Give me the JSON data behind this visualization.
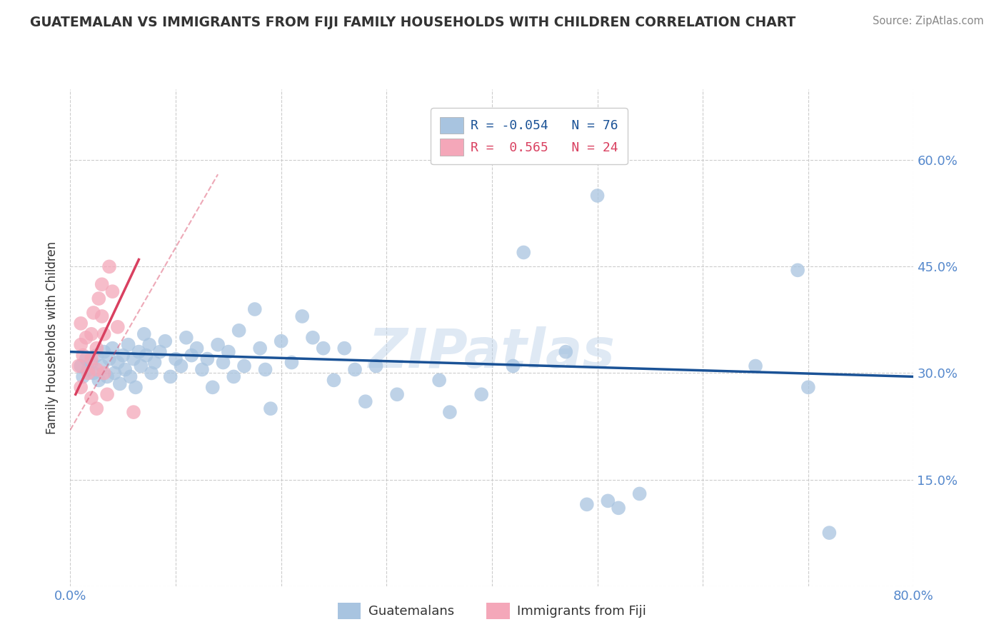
{
  "title": "GUATEMALAN VS IMMIGRANTS FROM FIJI FAMILY HOUSEHOLDS WITH CHILDREN CORRELATION CHART",
  "source": "Source: ZipAtlas.com",
  "ylabel": "Family Households with Children",
  "xlim": [
    0.0,
    0.8
  ],
  "ylim": [
    0.0,
    0.7
  ],
  "xticks": [
    0.0,
    0.1,
    0.2,
    0.3,
    0.4,
    0.5,
    0.6,
    0.7,
    0.8
  ],
  "yticks": [
    0.0,
    0.15,
    0.3,
    0.45,
    0.6
  ],
  "blue_color": "#a8c4e0",
  "pink_color": "#f4a7b9",
  "blue_line_color": "#1a5296",
  "pink_line_color": "#d94060",
  "grid_color": "#cccccc",
  "background_color": "#ffffff",
  "title_color": "#333333",
  "axis_label_color": "#333333",
  "tick_label_color": "#5588cc",
  "source_color": "#888888",
  "blue_scatter": [
    [
      0.01,
      0.31
    ],
    [
      0.012,
      0.295
    ],
    [
      0.015,
      0.32
    ],
    [
      0.017,
      0.305
    ],
    [
      0.02,
      0.315
    ],
    [
      0.022,
      0.3
    ],
    [
      0.025,
      0.325
    ],
    [
      0.027,
      0.29
    ],
    [
      0.03,
      0.31
    ],
    [
      0.032,
      0.33
    ],
    [
      0.035,
      0.295
    ],
    [
      0.037,
      0.32
    ],
    [
      0.04,
      0.335
    ],
    [
      0.042,
      0.3
    ],
    [
      0.045,
      0.315
    ],
    [
      0.047,
      0.285
    ],
    [
      0.05,
      0.325
    ],
    [
      0.052,
      0.305
    ],
    [
      0.055,
      0.34
    ],
    [
      0.057,
      0.295
    ],
    [
      0.06,
      0.32
    ],
    [
      0.062,
      0.28
    ],
    [
      0.065,
      0.33
    ],
    [
      0.067,
      0.31
    ],
    [
      0.07,
      0.355
    ],
    [
      0.072,
      0.325
    ],
    [
      0.075,
      0.34
    ],
    [
      0.077,
      0.3
    ],
    [
      0.08,
      0.315
    ],
    [
      0.085,
      0.33
    ],
    [
      0.09,
      0.345
    ],
    [
      0.095,
      0.295
    ],
    [
      0.1,
      0.32
    ],
    [
      0.105,
      0.31
    ],
    [
      0.11,
      0.35
    ],
    [
      0.115,
      0.325
    ],
    [
      0.12,
      0.335
    ],
    [
      0.125,
      0.305
    ],
    [
      0.13,
      0.32
    ],
    [
      0.135,
      0.28
    ],
    [
      0.14,
      0.34
    ],
    [
      0.145,
      0.315
    ],
    [
      0.15,
      0.33
    ],
    [
      0.155,
      0.295
    ],
    [
      0.16,
      0.36
    ],
    [
      0.165,
      0.31
    ],
    [
      0.175,
      0.39
    ],
    [
      0.18,
      0.335
    ],
    [
      0.185,
      0.305
    ],
    [
      0.19,
      0.25
    ],
    [
      0.2,
      0.345
    ],
    [
      0.21,
      0.315
    ],
    [
      0.22,
      0.38
    ],
    [
      0.23,
      0.35
    ],
    [
      0.24,
      0.335
    ],
    [
      0.25,
      0.29
    ],
    [
      0.26,
      0.335
    ],
    [
      0.27,
      0.305
    ],
    [
      0.28,
      0.26
    ],
    [
      0.29,
      0.31
    ],
    [
      0.31,
      0.27
    ],
    [
      0.35,
      0.29
    ],
    [
      0.36,
      0.245
    ],
    [
      0.39,
      0.27
    ],
    [
      0.42,
      0.31
    ],
    [
      0.43,
      0.47
    ],
    [
      0.47,
      0.33
    ],
    [
      0.49,
      0.115
    ],
    [
      0.5,
      0.55
    ],
    [
      0.51,
      0.12
    ],
    [
      0.52,
      0.11
    ],
    [
      0.54,
      0.13
    ],
    [
      0.65,
      0.31
    ],
    [
      0.69,
      0.445
    ],
    [
      0.7,
      0.28
    ],
    [
      0.72,
      0.075
    ]
  ],
  "pink_scatter": [
    [
      0.008,
      0.31
    ],
    [
      0.01,
      0.34
    ],
    [
      0.01,
      0.37
    ],
    [
      0.01,
      0.28
    ],
    [
      0.012,
      0.325
    ],
    [
      0.015,
      0.35
    ],
    [
      0.017,
      0.3
    ],
    [
      0.02,
      0.355
    ],
    [
      0.02,
      0.32
    ],
    [
      0.02,
      0.265
    ],
    [
      0.022,
      0.385
    ],
    [
      0.025,
      0.335
    ],
    [
      0.025,
      0.305
    ],
    [
      0.025,
      0.25
    ],
    [
      0.027,
      0.405
    ],
    [
      0.03,
      0.425
    ],
    [
      0.03,
      0.38
    ],
    [
      0.032,
      0.355
    ],
    [
      0.032,
      0.3
    ],
    [
      0.035,
      0.27
    ],
    [
      0.037,
      0.45
    ],
    [
      0.04,
      0.415
    ],
    [
      0.045,
      0.365
    ],
    [
      0.06,
      0.245
    ]
  ],
  "blue_trend": [
    0.0,
    0.8,
    0.33,
    0.295
  ],
  "pink_trend": [
    0.005,
    0.065,
    0.27,
    0.46
  ],
  "pink_dashed": [
    0.0,
    0.14,
    0.22,
    0.58
  ]
}
